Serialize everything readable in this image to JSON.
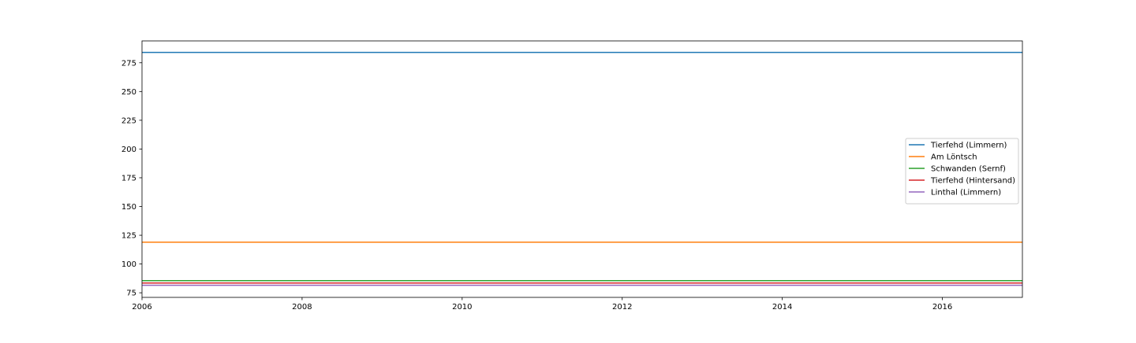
{
  "chart_data": {
    "type": "line",
    "title": "",
    "xlabel": "",
    "ylabel": "",
    "xlim": [
      2006,
      2017
    ],
    "ylim": [
      71,
      294
    ],
    "xticks": [
      2006,
      2008,
      2010,
      2012,
      2014,
      2016
    ],
    "yticks": [
      75,
      100,
      125,
      150,
      175,
      200,
      225,
      250,
      275
    ],
    "grid": false,
    "legend_position": "center-right",
    "x": [
      2006,
      2017
    ],
    "series": [
      {
        "name": "Tierfehd (Limmern)",
        "color": "#1f77b4",
        "values": [
          284,
          284
        ]
      },
      {
        "name": "Am Löntsch",
        "color": "#ff7f0e",
        "values": [
          119,
          119
        ]
      },
      {
        "name": "Schwanden (Sernf)",
        "color": "#2ca02c",
        "values": [
          85.5,
          85.5
        ]
      },
      {
        "name": "Tierfehd (Hintersand)",
        "color": "#d62728",
        "values": [
          83.5,
          83.5
        ]
      },
      {
        "name": "Linthal (Limmern)",
        "color": "#9467bd",
        "values": [
          81.5,
          81.5
        ]
      }
    ]
  }
}
